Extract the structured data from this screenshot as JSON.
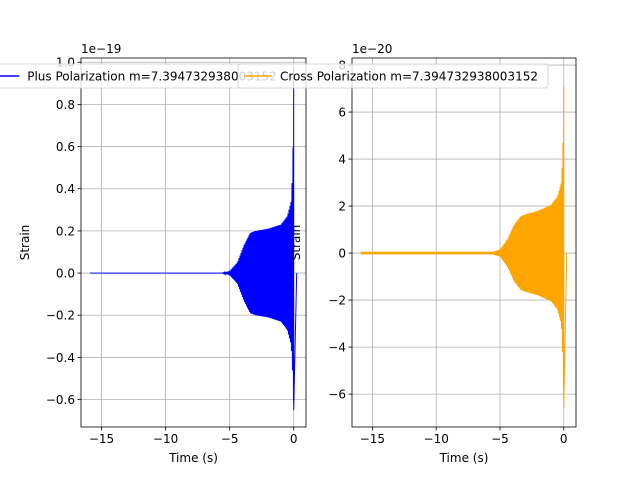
{
  "chart_data": [
    {
      "type": "line",
      "xlabel": "Time (s)",
      "ylabel": "Strain",
      "offset_text": "1e−19",
      "xlim": [
        -16.6,
        0.96
      ],
      "ylim": [
        -0.73,
        1.02
      ],
      "xticks": [
        -15,
        -10,
        -5,
        0
      ],
      "xtick_labels": [
        "−15",
        "−10",
        "−5",
        "0"
      ],
      "yticks": [
        -0.6,
        -0.4,
        -0.2,
        0.0,
        0.2,
        0.4,
        0.6,
        0.8,
        1.0
      ],
      "ytick_labels": [
        "−0.6",
        "−0.4",
        "−0.2",
        "0.0",
        "0.2",
        "0.4",
        "0.6",
        "0.8",
        "1.0"
      ],
      "grid": true,
      "legend_placement": "top",
      "series": [
        {
          "name": "Plus Polarization m=7.394732938003152",
          "color": "#0000ff",
          "t_start": -15.9,
          "t_end": 0.0,
          "envelope_upper": [
            [
              -15.9,
              0.0
            ],
            [
              -5.6,
              0.0
            ],
            [
              -5.0,
              0.01
            ],
            [
              -4.4,
              0.05
            ],
            [
              -3.9,
              0.13
            ],
            [
              -3.4,
              0.19
            ],
            [
              -3.0,
              0.2
            ],
            [
              -2.0,
              0.21
            ],
            [
              -1.0,
              0.23
            ],
            [
              -0.5,
              0.27
            ],
            [
              -0.2,
              0.34
            ],
            [
              -0.08,
              0.5
            ],
            [
              -0.02,
              0.75
            ],
            [
              0.0,
              0.98
            ]
          ],
          "envelope_lower": [
            [
              -15.9,
              0.0
            ],
            [
              -5.6,
              0.0
            ],
            [
              -5.0,
              -0.01
            ],
            [
              -4.4,
              -0.05
            ],
            [
              -3.9,
              -0.13
            ],
            [
              -3.4,
              -0.19
            ],
            [
              -3.0,
              -0.2
            ],
            [
              -2.0,
              -0.21
            ],
            [
              -1.0,
              -0.23
            ],
            [
              -0.5,
              -0.27
            ],
            [
              -0.2,
              -0.34
            ],
            [
              -0.08,
              -0.48
            ],
            [
              -0.02,
              -0.6
            ],
            [
              0.0,
              -0.65
            ]
          ]
        }
      ]
    },
    {
      "type": "line",
      "xlabel": "Time (s)",
      "ylabel": "Strain",
      "offset_text": "1e−20",
      "xlim": [
        -16.6,
        0.96
      ],
      "ylim": [
        -7.4,
        8.3
      ],
      "xticks": [
        -15,
        -10,
        -5,
        0
      ],
      "xtick_labels": [
        "−15",
        "−10",
        "−5",
        "0"
      ],
      "yticks": [
        -6,
        -4,
        -2,
        0,
        2,
        4,
        6,
        8
      ],
      "ytick_labels": [
        "−6",
        "−4",
        "−2",
        "0",
        "2",
        "4",
        "6",
        "8"
      ],
      "grid": true,
      "legend_placement": "top",
      "series": [
        {
          "name": "Cross Polarization m=7.394732938003152",
          "color": "#ffa500",
          "t_start": -15.9,
          "t_end": 0.0,
          "envelope_upper": [
            [
              -15.9,
              0.05
            ],
            [
              -5.6,
              0.05
            ],
            [
              -5.0,
              0.15
            ],
            [
              -4.4,
              0.6
            ],
            [
              -3.9,
              1.2
            ],
            [
              -3.4,
              1.55
            ],
            [
              -3.0,
              1.65
            ],
            [
              -2.0,
              1.8
            ],
            [
              -1.0,
              2.05
            ],
            [
              -0.5,
              2.4
            ],
            [
              -0.2,
              3.0
            ],
            [
              -0.08,
              4.3
            ],
            [
              -0.02,
              5.8
            ],
            [
              0.0,
              7.1
            ]
          ],
          "envelope_lower": [
            [
              -15.9,
              -0.05
            ],
            [
              -5.6,
              -0.05
            ],
            [
              -5.0,
              -0.15
            ],
            [
              -4.4,
              -0.6
            ],
            [
              -3.9,
              -1.2
            ],
            [
              -3.4,
              -1.55
            ],
            [
              -3.0,
              -1.65
            ],
            [
              -2.0,
              -1.8
            ],
            [
              -1.0,
              -2.05
            ],
            [
              -0.5,
              -2.4
            ],
            [
              -0.2,
              -3.0
            ],
            [
              -0.08,
              -4.5
            ],
            [
              -0.02,
              -5.9
            ],
            [
              0.0,
              -6.6
            ]
          ]
        }
      ]
    }
  ]
}
